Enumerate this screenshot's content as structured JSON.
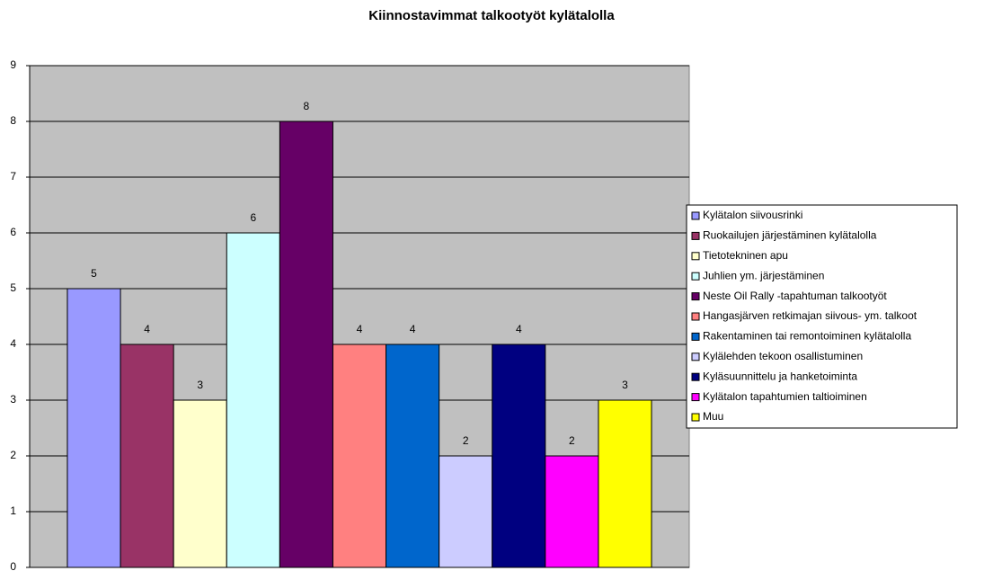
{
  "chart_data": {
    "type": "bar",
    "title": "Kiinnostavimmat talkootyöt kylätalolla",
    "series": [
      {
        "name": "Kylätalon siivousrinki",
        "color": "#9999ff",
        "values": [
          5
        ]
      },
      {
        "name": "Ruokailujen järjestäminen kylätalolla",
        "color": "#993366",
        "values": [
          4
        ]
      },
      {
        "name": "Tietotekninen apu",
        "color": "#ffffcc",
        "values": [
          3
        ]
      },
      {
        "name": "Juhlien ym. järjestäminen",
        "color": "#ccffff",
        "values": [
          6
        ]
      },
      {
        "name": "Neste Oil Rally -tapahtuman talkootyöt",
        "color": "#660066",
        "values": [
          8
        ]
      },
      {
        "name": "Hangasjärven retkimajan siivous- ym. talkoot",
        "color": "#ff8080",
        "values": [
          4
        ]
      },
      {
        "name": "Rakentaminen tai remontoiminen kylätalolla",
        "color": "#0066cc",
        "values": [
          4
        ]
      },
      {
        "name": "Kylälehden tekoon osallistuminen",
        "color": "#ccccff",
        "values": [
          2
        ]
      },
      {
        "name": "Kyläsuunnittelu ja hanketoiminta",
        "color": "#000080",
        "values": [
          4
        ]
      },
      {
        "name": "Kylätalon tapahtumien taltioiminen",
        "color": "#ff00ff",
        "values": [
          2
        ]
      },
      {
        "name": "Muu",
        "color": "#ffff00",
        "values": [
          3
        ]
      }
    ],
    "ylim": [
      0,
      9
    ],
    "yticks": [
      0,
      1,
      2,
      3,
      4,
      5,
      6,
      7,
      8,
      9
    ],
    "grid": true,
    "plot_background": "#c0c0c0",
    "legend": "right"
  }
}
